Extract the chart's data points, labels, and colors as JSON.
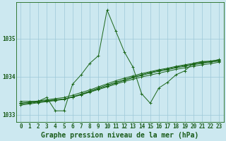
{
  "title": "Graphe pression niveau de la mer (hPa)",
  "background_color": "#cce8f0",
  "grid_color": "#9ec8d8",
  "line_color": "#1a6618",
  "x_labels": [
    "0",
    "1",
    "2",
    "3",
    "4",
    "5",
    "6",
    "7",
    "8",
    "9",
    "10",
    "11",
    "12",
    "13",
    "14",
    "15",
    "16",
    "17",
    "18",
    "19",
    "20",
    "21",
    "22",
    "23"
  ],
  "x_values": [
    0,
    1,
    2,
    3,
    4,
    5,
    6,
    7,
    8,
    9,
    10,
    11,
    12,
    13,
    14,
    15,
    16,
    17,
    18,
    19,
    20,
    21,
    22,
    23
  ],
  "series_main": [
    1033.35,
    1033.35,
    1033.35,
    1033.45,
    1033.1,
    1033.1,
    1033.8,
    1034.05,
    1034.35,
    1034.55,
    1035.75,
    1035.2,
    1034.65,
    1034.25,
    1033.55,
    1033.3,
    1033.7,
    1033.85,
    1034.05,
    1034.15,
    1034.35,
    1034.4,
    1034.4,
    1034.45
  ],
  "series_trend1": [
    1033.3,
    1033.32,
    1033.34,
    1033.37,
    1033.39,
    1033.41,
    1033.46,
    1033.52,
    1033.59,
    1033.66,
    1033.73,
    1033.8,
    1033.87,
    1033.93,
    1033.99,
    1034.04,
    1034.09,
    1034.14,
    1034.19,
    1034.23,
    1034.27,
    1034.31,
    1034.34,
    1034.38
  ],
  "series_trend2": [
    1033.3,
    1033.33,
    1033.36,
    1033.39,
    1033.42,
    1033.45,
    1033.51,
    1033.58,
    1033.65,
    1033.73,
    1033.81,
    1033.89,
    1033.96,
    1034.02,
    1034.08,
    1034.13,
    1034.18,
    1034.22,
    1034.27,
    1034.31,
    1034.35,
    1034.38,
    1034.41,
    1034.44
  ],
  "series_trend3": [
    1033.28,
    1033.3,
    1033.33,
    1033.36,
    1033.38,
    1033.41,
    1033.47,
    1033.54,
    1033.62,
    1033.7,
    1033.78,
    1033.85,
    1033.92,
    1033.99,
    1034.05,
    1034.11,
    1034.16,
    1034.2,
    1034.25,
    1034.29,
    1034.33,
    1034.36,
    1034.39,
    1034.42
  ],
  "series_trend4": [
    1033.25,
    1033.28,
    1033.31,
    1033.34,
    1033.37,
    1033.4,
    1033.46,
    1033.53,
    1033.6,
    1033.68,
    1033.75,
    1033.83,
    1033.9,
    1033.97,
    1034.03,
    1034.09,
    1034.14,
    1034.18,
    1034.23,
    1034.27,
    1034.31,
    1034.35,
    1034.38,
    1034.41
  ],
  "ylim": [
    1032.8,
    1035.95
  ],
  "yticks": [
    1033,
    1034,
    1035
  ],
  "xlim": [
    -0.5,
    23.5
  ],
  "title_fontsize": 7,
  "tick_fontsize": 5.5,
  "title_color": "#1a5c1a"
}
